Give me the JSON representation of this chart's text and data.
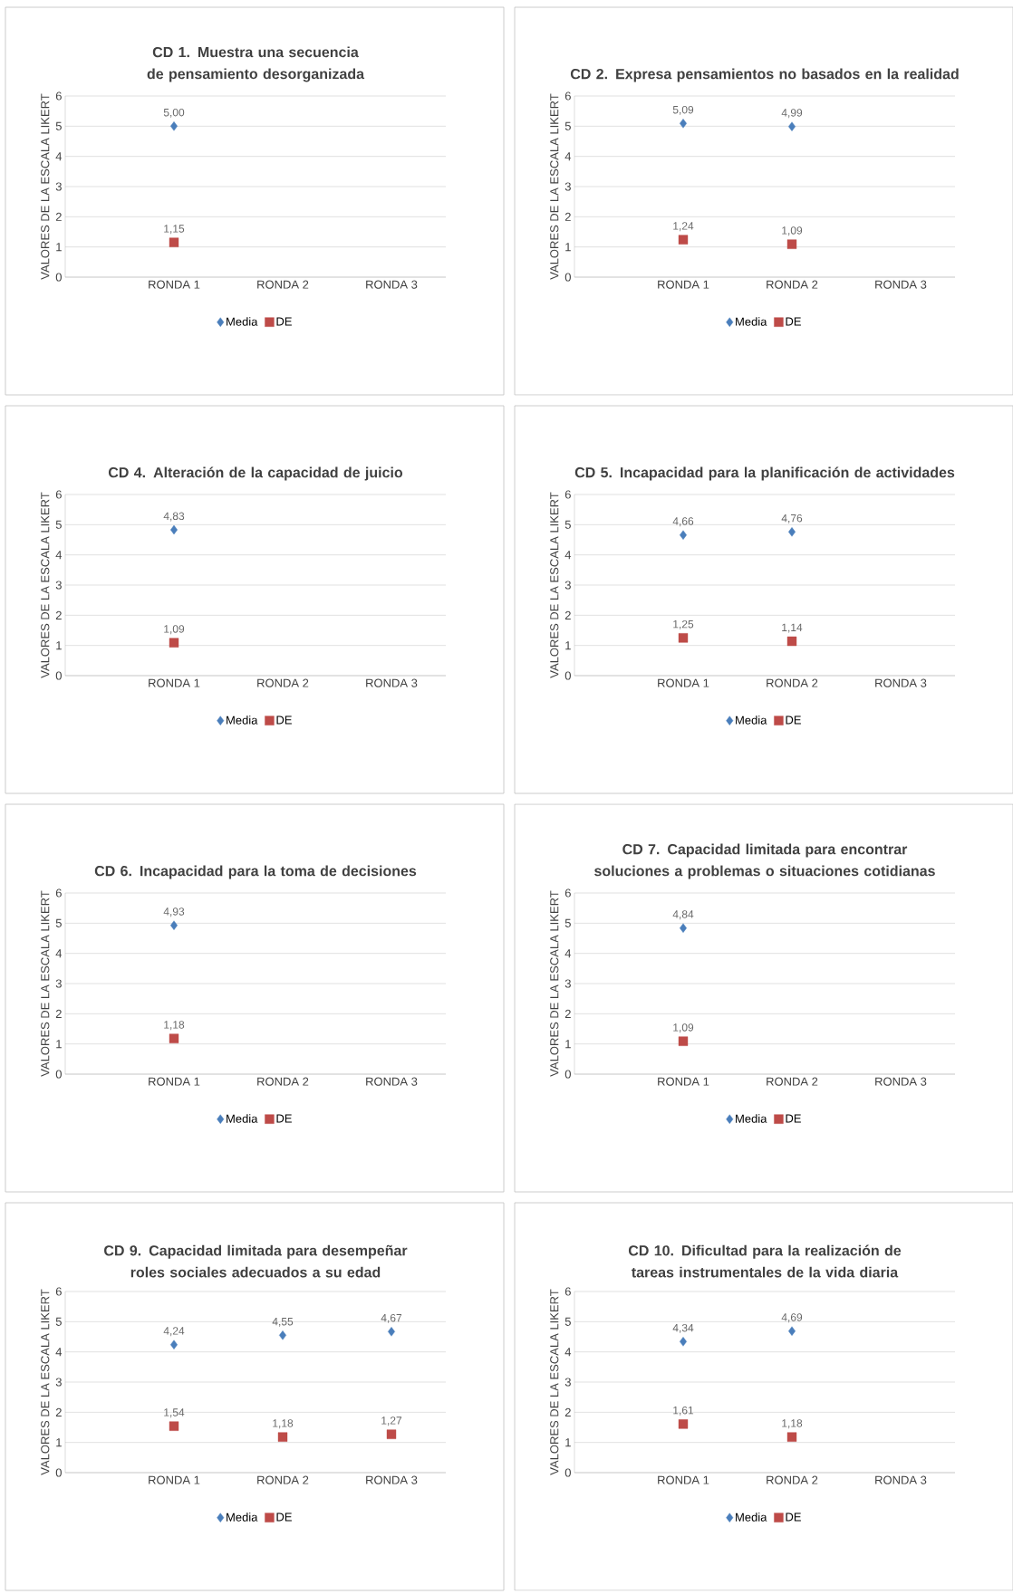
{
  "chart_data": [
    {
      "type": "scatter",
      "title": "CD 1. Muestra una secuencia de pensamiento desorganizada",
      "ylabel": "VALORES DE LA ESCALA LIKERT",
      "categories": [
        "RONDA 1",
        "RONDA 2",
        "RONDA 3"
      ],
      "ylim": [
        0,
        6
      ],
      "yticks": [
        0,
        1,
        2,
        3,
        4,
        5,
        6
      ],
      "grid": "y",
      "legend": "bottom",
      "series": [
        {
          "name": "Media",
          "color": "#4a7ebb",
          "marker": "diamond",
          "values": [
            5.0,
            null,
            null
          ],
          "value_labels": [
            "5,00",
            null,
            null
          ]
        },
        {
          "name": "DE",
          "color": "#be4b48",
          "marker": "square",
          "values": [
            1.15,
            null,
            null
          ],
          "value_labels": [
            "1,15",
            null,
            null
          ]
        }
      ]
    },
    {
      "type": "scatter",
      "title": "CD 2. Expresa pensamientos no basados en la realidad",
      "ylabel": "VALORES DE LA ESCALA LIKERT",
      "categories": [
        "RONDA 1",
        "RONDA 2",
        "RONDA 3"
      ],
      "ylim": [
        0,
        6
      ],
      "yticks": [
        0,
        1,
        2,
        3,
        4,
        5,
        6
      ],
      "grid": "y",
      "legend": "bottom",
      "series": [
        {
          "name": "Media",
          "color": "#4a7ebb",
          "marker": "diamond",
          "values": [
            5.09,
            4.99,
            null
          ],
          "value_labels": [
            "5,09",
            "4,99",
            null
          ]
        },
        {
          "name": "DE",
          "color": "#be4b48",
          "marker": "square",
          "values": [
            1.24,
            1.09,
            null
          ],
          "value_labels": [
            "1,24",
            "1,09",
            null
          ]
        }
      ]
    },
    {
      "type": "scatter",
      "title": "CD 4. Alteración de la capacidad de juicio",
      "ylabel": "VALORES DE LA ESCALA LIKERT",
      "categories": [
        "RONDA 1",
        "RONDA 2",
        "RONDA 3"
      ],
      "ylim": [
        0,
        6
      ],
      "yticks": [
        0,
        1,
        2,
        3,
        4,
        5,
        6
      ],
      "grid": "y",
      "legend": "bottom",
      "series": [
        {
          "name": "Media",
          "color": "#4a7ebb",
          "marker": "diamond",
          "values": [
            4.83,
            null,
            null
          ],
          "value_labels": [
            "4,83",
            null,
            null
          ]
        },
        {
          "name": "DE",
          "color": "#be4b48",
          "marker": "square",
          "values": [
            1.09,
            null,
            null
          ],
          "value_labels": [
            "1,09",
            null,
            null
          ]
        }
      ]
    },
    {
      "type": "scatter",
      "title": "CD 5. Incapacidad para la planificación de actividades",
      "ylabel": "VALORES DE LA ESCALA LIKERT",
      "categories": [
        "RONDA 1",
        "RONDA 2",
        "RONDA 3"
      ],
      "ylim": [
        0,
        6
      ],
      "yticks": [
        0,
        1,
        2,
        3,
        4,
        5,
        6
      ],
      "grid": "y",
      "legend": "bottom",
      "series": [
        {
          "name": "Media",
          "color": "#4a7ebb",
          "marker": "diamond",
          "values": [
            4.66,
            4.76,
            null
          ],
          "value_labels": [
            "4,66",
            "4,76",
            null
          ]
        },
        {
          "name": "DE",
          "color": "#be4b48",
          "marker": "square",
          "values": [
            1.25,
            1.14,
            null
          ],
          "value_labels": [
            "1,25",
            "1,14",
            null
          ]
        }
      ]
    },
    {
      "type": "scatter",
      "title": "CD 6. Incapacidad para la toma de decisiones",
      "ylabel": "VALORES DE LA ESCALA LIKERT",
      "categories": [
        "RONDA 1",
        "RONDA 2",
        "RONDA 3"
      ],
      "ylim": [
        0,
        6
      ],
      "yticks": [
        0,
        1,
        2,
        3,
        4,
        5,
        6
      ],
      "grid": "y",
      "legend": "bottom",
      "series": [
        {
          "name": "Media",
          "color": "#4a7ebb",
          "marker": "diamond",
          "values": [
            4.93,
            null,
            null
          ],
          "value_labels": [
            "4,93",
            null,
            null
          ]
        },
        {
          "name": "DE",
          "color": "#be4b48",
          "marker": "square",
          "values": [
            1.18,
            null,
            null
          ],
          "value_labels": [
            "1,18",
            null,
            null
          ]
        }
      ]
    },
    {
      "type": "scatter",
      "title": "CD 7. Capacidad limitada para encontrar soluciones a problemas o situaciones cotidianas",
      "ylabel": "VALORES DE LA ESCALA LIKERT",
      "categories": [
        "RONDA 1",
        "RONDA 2",
        "RONDA 3"
      ],
      "ylim": [
        0,
        6
      ],
      "yticks": [
        0,
        1,
        2,
        3,
        4,
        5,
        6
      ],
      "grid": "y",
      "legend": "bottom",
      "series": [
        {
          "name": "Media",
          "color": "#4a7ebb",
          "marker": "diamond",
          "values": [
            4.84,
            null,
            null
          ],
          "value_labels": [
            "4,84",
            null,
            null
          ]
        },
        {
          "name": "DE",
          "color": "#be4b48",
          "marker": "square",
          "values": [
            1.09,
            null,
            null
          ],
          "value_labels": [
            "1,09",
            null,
            null
          ]
        }
      ]
    },
    {
      "type": "scatter",
      "title": "CD 9. Capacidad limitada para desempeñar roles sociales adecuados a su edad",
      "ylabel": "VALORES DE LA ESCALA LIKERT",
      "categories": [
        "RONDA 1",
        "RONDA 2",
        "RONDA 3"
      ],
      "ylim": [
        0,
        6
      ],
      "yticks": [
        0,
        1,
        2,
        3,
        4,
        5,
        6
      ],
      "grid": "y",
      "legend": "bottom",
      "series": [
        {
          "name": "Media",
          "color": "#4a7ebb",
          "marker": "diamond",
          "values": [
            4.24,
            4.55,
            4.67
          ],
          "value_labels": [
            "4,24",
            "4,55",
            "4,67"
          ]
        },
        {
          "name": "DE",
          "color": "#be4b48",
          "marker": "square",
          "values": [
            1.54,
            1.18,
            1.27
          ],
          "value_labels": [
            "1,54",
            "1,18",
            "1,27"
          ]
        }
      ]
    },
    {
      "type": "scatter",
      "title": "CD 10. Dificultad para la realización de tareas instrumentales de la vida diaria",
      "ylabel": "VALORES DE LA ESCALA LIKERT",
      "categories": [
        "RONDA 1",
        "RONDA 2",
        "RONDA 3"
      ],
      "ylim": [
        0,
        6
      ],
      "yticks": [
        0,
        1,
        2,
        3,
        4,
        5,
        6
      ],
      "grid": "y",
      "legend": "bottom",
      "series": [
        {
          "name": "Media",
          "color": "#4a7ebb",
          "marker": "diamond",
          "values": [
            4.34,
            4.69,
            null
          ],
          "value_labels": [
            "4,34",
            "4,69",
            null
          ]
        },
        {
          "name": "DE",
          "color": "#be4b48",
          "marker": "square",
          "values": [
            1.61,
            1.18,
            null
          ],
          "value_labels": [
            "1,61",
            "1,18",
            null
          ]
        }
      ]
    }
  ]
}
